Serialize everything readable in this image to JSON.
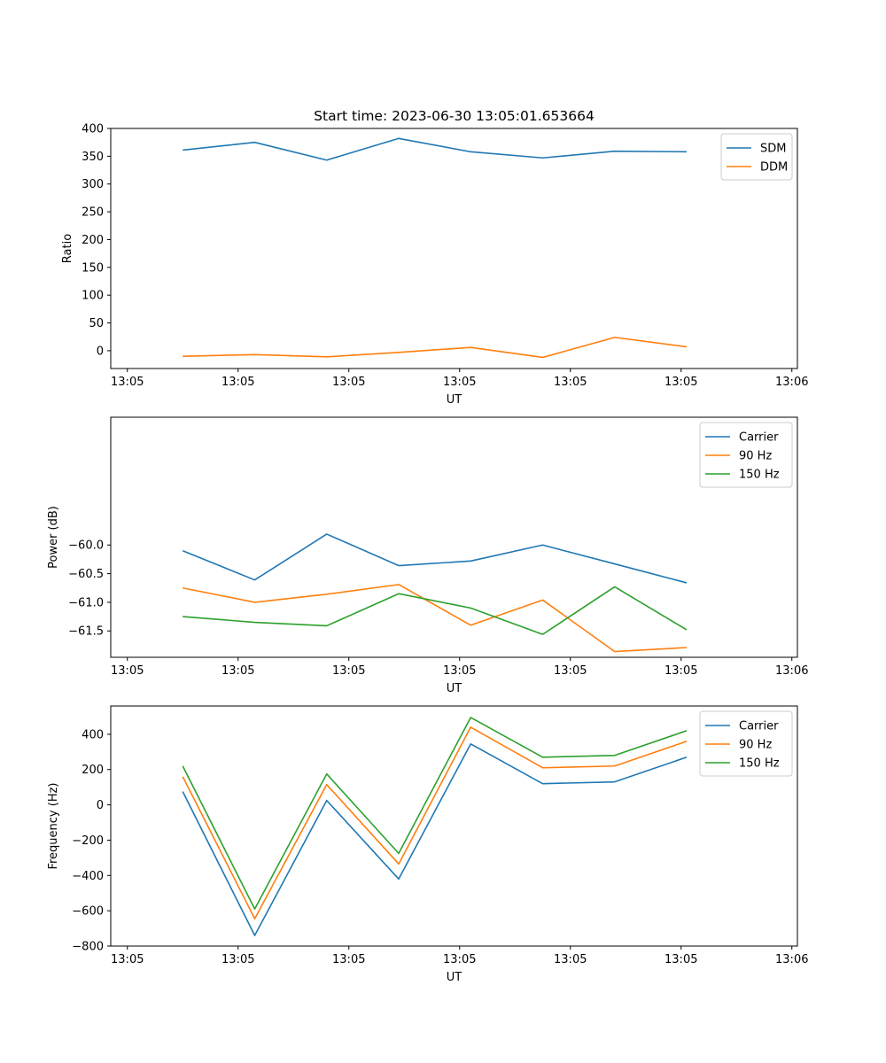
{
  "chart_data": [
    {
      "type": "line",
      "title": "Start time: 2023-06-30 13:05:01.653664",
      "xlabel": "UT",
      "ylabel": "Ratio",
      "x_ticks": [
        "13:05",
        "13:05",
        "13:05",
        "13:05",
        "13:05",
        "13:05",
        "13:06"
      ],
      "x_tick_values": [
        0,
        1,
        2,
        3,
        4,
        5,
        6
      ],
      "xlim": [
        -0.15,
        6.05
      ],
      "x": [
        0.5,
        1.15,
        1.8,
        2.45,
        3.1,
        3.75,
        4.4,
        5.05
      ],
      "y_ticks": [
        0,
        50,
        100,
        150,
        200,
        250,
        300,
        350,
        400
      ],
      "ylim": [
        -32,
        400
      ],
      "legend": "top-right",
      "series": [
        {
          "name": "SDM",
          "color": "#1f77b4",
          "values": [
            361,
            375,
            343,
            382,
            358,
            347,
            359,
            358
          ]
        },
        {
          "name": "DDM",
          "color": "#ff7f0e",
          "values": [
            -10,
            -7,
            -11,
            -3,
            6,
            -12,
            24,
            7
          ]
        }
      ]
    },
    {
      "type": "line",
      "title": "",
      "xlabel": "UT",
      "ylabel": "Power (dB)",
      "x_ticks": [
        "13:05",
        "13:05",
        "13:05",
        "13:05",
        "13:05",
        "13:05",
        "13:06"
      ],
      "x_tick_values": [
        0,
        1,
        2,
        3,
        4,
        5,
        6
      ],
      "xlim": [
        -0.15,
        6.05
      ],
      "x": [
        0.5,
        1.15,
        1.8,
        2.45,
        3.1,
        3.75,
        4.4,
        5.05
      ],
      "y_ticks": [
        -60.0,
        -60.5,
        -61.0,
        -61.5
      ],
      "y_tick_labels": [
        "−60.0",
        "−60.5",
        "−61.0",
        "−61.5"
      ],
      "ylim": [
        -61.96,
        -57.77
      ],
      "legend": "top-right",
      "series": [
        {
          "name": "Carrier",
          "color": "#1f77b4",
          "values": [
            -60.1,
            -60.61,
            -59.81,
            -60.36,
            -60.28,
            -60.0,
            -60.33,
            -60.66
          ]
        },
        {
          "name": "90 Hz",
          "color": "#ff7f0e",
          "values": [
            -60.75,
            -61.0,
            -60.86,
            -60.69,
            -61.4,
            -60.96,
            -61.86,
            -61.79
          ]
        },
        {
          "name": "150 Hz",
          "color": "#2ca02c",
          "values": [
            -61.25,
            -61.35,
            -61.41,
            -60.85,
            -61.1,
            -61.56,
            -60.73,
            -61.48
          ]
        }
      ]
    },
    {
      "type": "line",
      "title": "",
      "xlabel": "UT",
      "ylabel": "Frequency (Hz)",
      "x_ticks": [
        "13:05",
        "13:05",
        "13:05",
        "13:05",
        "13:05",
        "13:05",
        "13:06"
      ],
      "x_tick_values": [
        0,
        1,
        2,
        3,
        4,
        5,
        6
      ],
      "xlim": [
        -0.15,
        6.05
      ],
      "x": [
        0.5,
        1.15,
        1.8,
        2.45,
        3.1,
        3.75,
        4.4,
        5.05
      ],
      "y_ticks": [
        400,
        200,
        0,
        -200,
        -400,
        -600,
        -800
      ],
      "y_tick_labels": [
        "400",
        "200",
        "0",
        "−200",
        "−400",
        "−600",
        "−800"
      ],
      "ylim": [
        -800,
        560
      ],
      "legend": "top-right",
      "series": [
        {
          "name": "Carrier",
          "color": "#1f77b4",
          "values": [
            75,
            -740,
            25,
            -420,
            345,
            120,
            130,
            270
          ]
        },
        {
          "name": "90 Hz",
          "color": "#ff7f0e",
          "values": [
            160,
            -645,
            115,
            -335,
            440,
            210,
            220,
            360
          ]
        },
        {
          "name": "150 Hz",
          "color": "#2ca02c",
          "values": [
            220,
            -590,
            175,
            -275,
            495,
            270,
            280,
            420
          ]
        }
      ]
    }
  ]
}
